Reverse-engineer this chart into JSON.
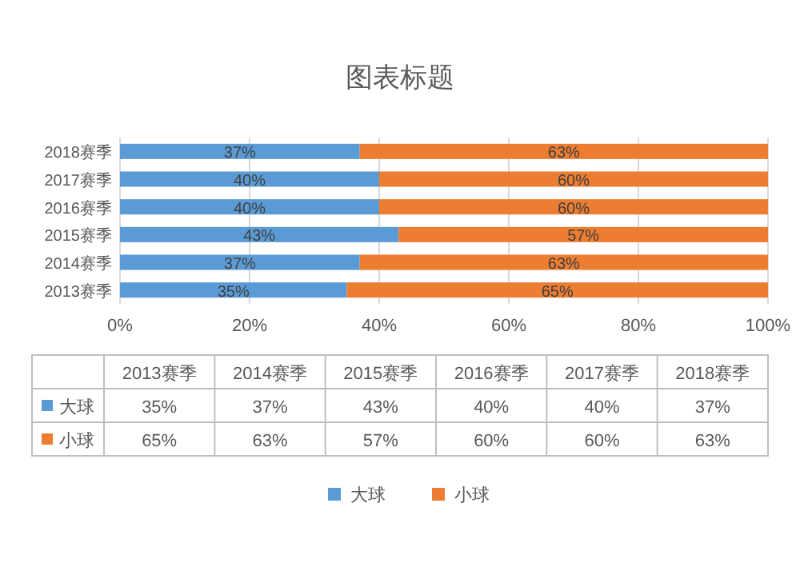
{
  "chart_data": {
    "type": "bar",
    "orientation": "horizontal",
    "stacked": true,
    "title": "图表标题",
    "categories": [
      "2018赛季",
      "2017赛季",
      "2016赛季",
      "2015赛季",
      "2014赛季",
      "2013赛季"
    ],
    "series": [
      {
        "name": "大球",
        "color": "#5b9bd5",
        "values": [
          37,
          40,
          40,
          43,
          37,
          35
        ],
        "value_labels": [
          "37%",
          "40%",
          "40%",
          "43%",
          "37%",
          "35%"
        ]
      },
      {
        "name": "小球",
        "color": "#ed7d31",
        "values": [
          63,
          60,
          60,
          57,
          63,
          65
        ],
        "value_labels": [
          "63%",
          "60%",
          "60%",
          "57%",
          "63%",
          "65%"
        ]
      }
    ],
    "xlim": [
      0,
      100
    ],
    "xticks": [
      {
        "value": 0,
        "label": "0%"
      },
      {
        "value": 20,
        "label": "20%"
      },
      {
        "value": 40,
        "label": "40%"
      },
      {
        "value": 60,
        "label": "60%"
      },
      {
        "value": 80,
        "label": "80%"
      },
      {
        "value": 100,
        "label": "100%"
      }
    ],
    "grid": "x",
    "legend": "bottom"
  }
}
